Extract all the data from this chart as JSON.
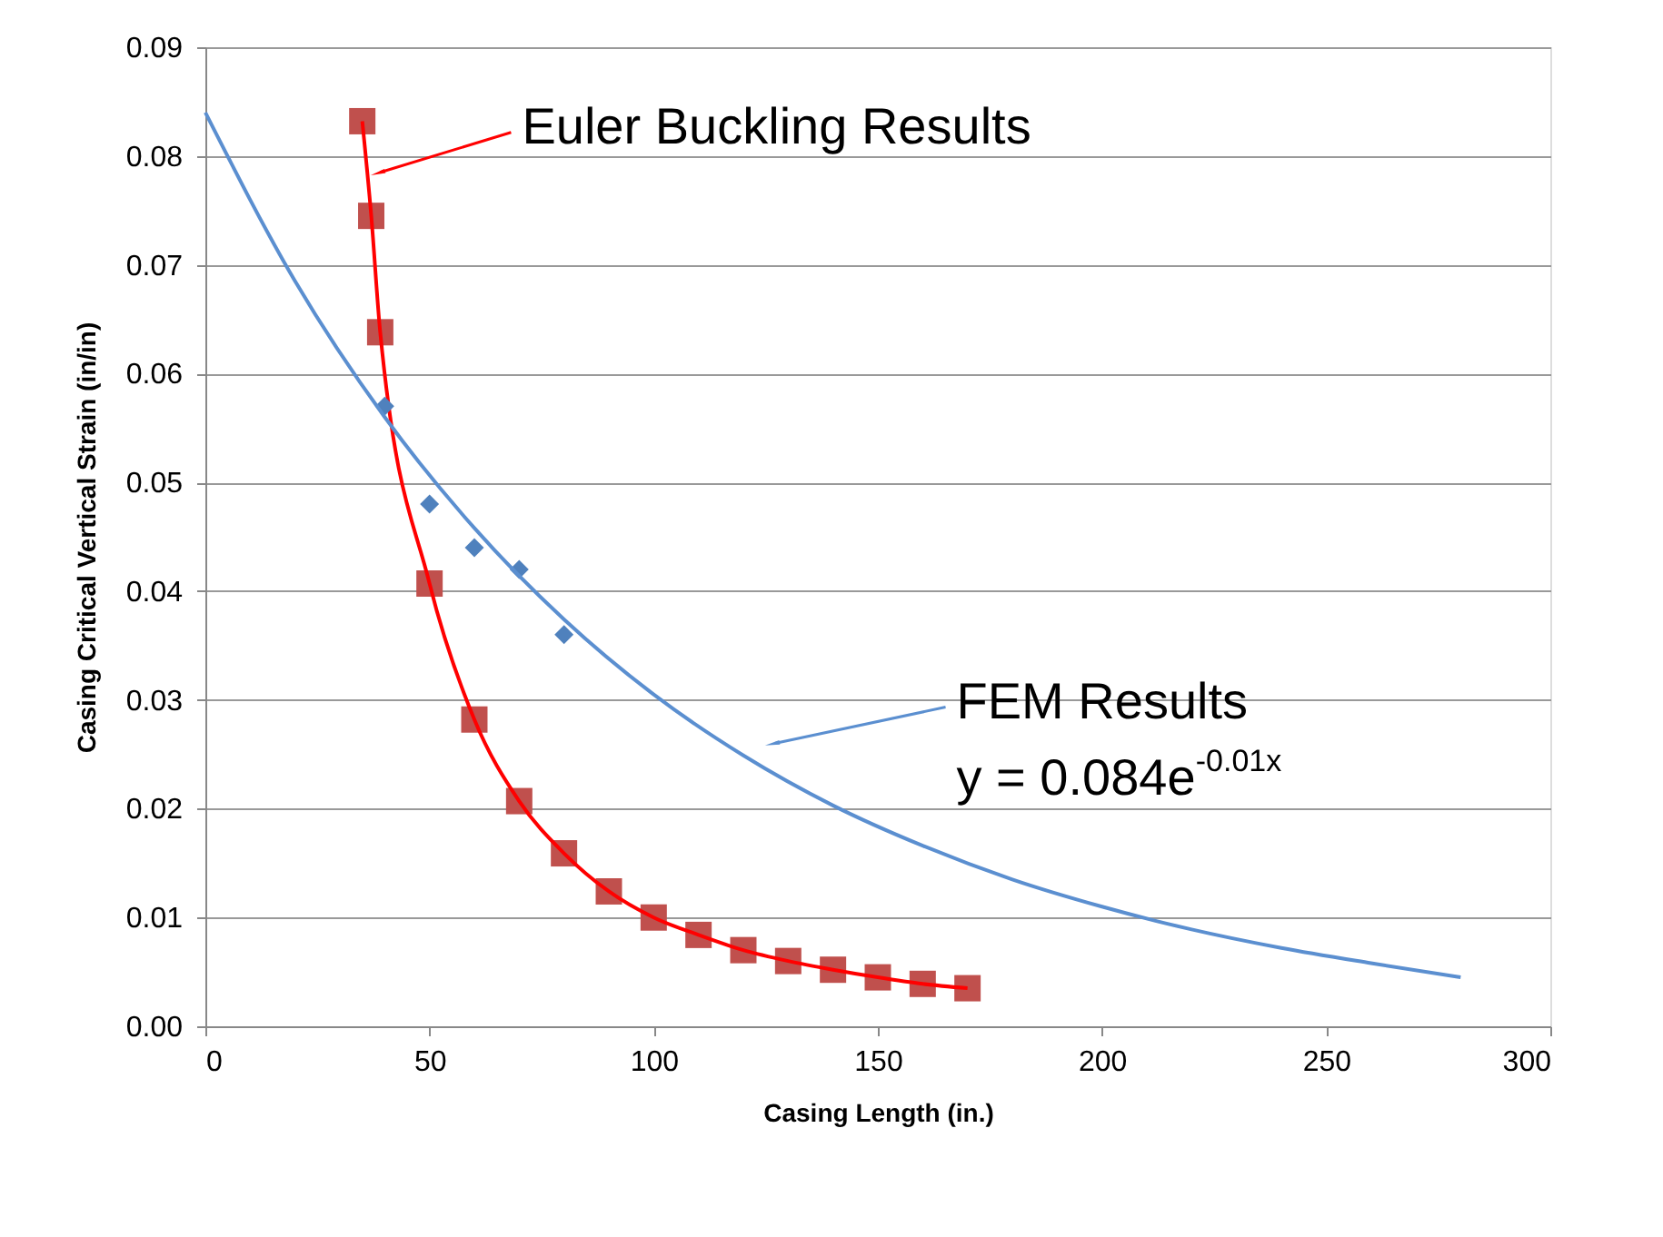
{
  "chart_data": {
    "type": "scatter",
    "xlabel": "Casing Length (in.)",
    "ylabel": "Casing Critical Vertical Strain (in/in)",
    "xlim": [
      0,
      300
    ],
    "xticks": [
      0,
      50,
      100,
      150,
      200,
      250,
      300
    ],
    "ylim": [
      0,
      0.09
    ],
    "yticks": [
      {
        "value": 0,
        "label": "0.00"
      },
      {
        "value": 0.01,
        "label": "0.01"
      },
      {
        "value": 0.02,
        "label": "0.02"
      },
      {
        "value": 0.03,
        "label": "0.03"
      },
      {
        "value": 0.04,
        "label": "0.04"
      },
      {
        "value": 0.05,
        "label": "0.05"
      },
      {
        "value": 0.06,
        "label": "0.06"
      },
      {
        "value": 0.07,
        "label": "0.07"
      },
      {
        "value": 0.08,
        "label": "0.08"
      },
      {
        "value": 0.09,
        "label": "0.09"
      }
    ],
    "grid": "y",
    "series": [
      {
        "marker": "square",
        "color": "#c0504d",
        "x": [
          35,
          37,
          39,
          50,
          60,
          70,
          80,
          90,
          100,
          110,
          120,
          130,
          140,
          150,
          160,
          170
        ],
        "values": [
          0.0832,
          0.0745,
          0.0638,
          0.0407,
          0.0282,
          0.0207,
          0.0159,
          0.0124,
          0.01,
          0.0084,
          0.007,
          0.006,
          0.0052,
          0.0045,
          0.0039,
          0.0035
        ]
      },
      {
        "type": "line",
        "color": "#ff0000",
        "x": [
          35,
          37,
          39,
          50,
          60,
          70,
          80,
          90,
          100,
          110,
          120,
          130,
          140,
          150,
          160,
          170
        ],
        "values": [
          0.0832,
          0.0745,
          0.0638,
          0.0407,
          0.0282,
          0.0207,
          0.0159,
          0.0124,
          0.01,
          0.0084,
          0.007,
          0.006,
          0.0052,
          0.0045,
          0.0039,
          0.0035
        ]
      },
      {
        "marker": "diamond",
        "color": "#4f81bd",
        "x": [
          40,
          50,
          60,
          70,
          80
        ],
        "values": [
          0.057,
          0.048,
          0.044,
          0.042,
          0.036
        ]
      },
      {
        "type": "line",
        "color": "#5b8fd0",
        "x": [
          0,
          20,
          40,
          60,
          80,
          100,
          120,
          140,
          160,
          180,
          200,
          220,
          240,
          260,
          280
        ],
        "values": [
          0.084,
          0.0685,
          0.056,
          0.0458,
          0.0374,
          0.0305,
          0.0249,
          0.0203,
          0.0166,
          0.0135,
          0.011,
          0.0089,
          0.0072,
          0.0058,
          0.0045
        ]
      }
    ],
    "annotations": [
      {
        "text": "Euler Buckling Results",
        "x": 39,
        "y": 0.0785
      },
      {
        "text": "FEM Results",
        "x": 127,
        "y": 0.026
      },
      "y = 0.084e$^{-0.01x}$"
    ]
  }
}
